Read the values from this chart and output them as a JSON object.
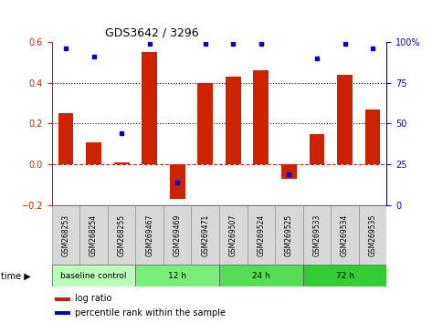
{
  "title": "GDS3642 / 3296",
  "samples": [
    "GSM268253",
    "GSM268254",
    "GSM268255",
    "GSM269467",
    "GSM269469",
    "GSM269471",
    "GSM269507",
    "GSM269524",
    "GSM269525",
    "GSM269533",
    "GSM269534",
    "GSM269535"
  ],
  "log_ratio": [
    0.25,
    0.11,
    0.01,
    0.55,
    -0.17,
    0.4,
    0.43,
    0.46,
    -0.07,
    0.15,
    0.44,
    0.27
  ],
  "percentile_rank": [
    96,
    91,
    44,
    99,
    14,
    99,
    99,
    99,
    19,
    90,
    99,
    96
  ],
  "group_labels": [
    "baseline control",
    "12 h",
    "24 h",
    "72 h"
  ],
  "group_starts": [
    0,
    3,
    6,
    9
  ],
  "group_ends": [
    3,
    6,
    9,
    12
  ],
  "group_colors": [
    "#bbffbb",
    "#77ee77",
    "#55dd55",
    "#33cc33"
  ],
  "bar_color": "#cc2200",
  "dot_color": "#0000cc",
  "ylim_left": [
    -0.2,
    0.6
  ],
  "ylim_right": [
    0,
    100
  ],
  "yticks_left": [
    -0.2,
    0.0,
    0.2,
    0.4,
    0.6
  ],
  "yticks_right": [
    0,
    25,
    50,
    75,
    100
  ],
  "ytick_labels_right": [
    "0",
    "25",
    "50",
    "75",
    "100%"
  ],
  "dotted_lines": [
    0.2,
    0.4
  ],
  "bg_color": "#f0f0f0",
  "label_color_left": "#cc2200",
  "label_color_right": "#0000cc"
}
